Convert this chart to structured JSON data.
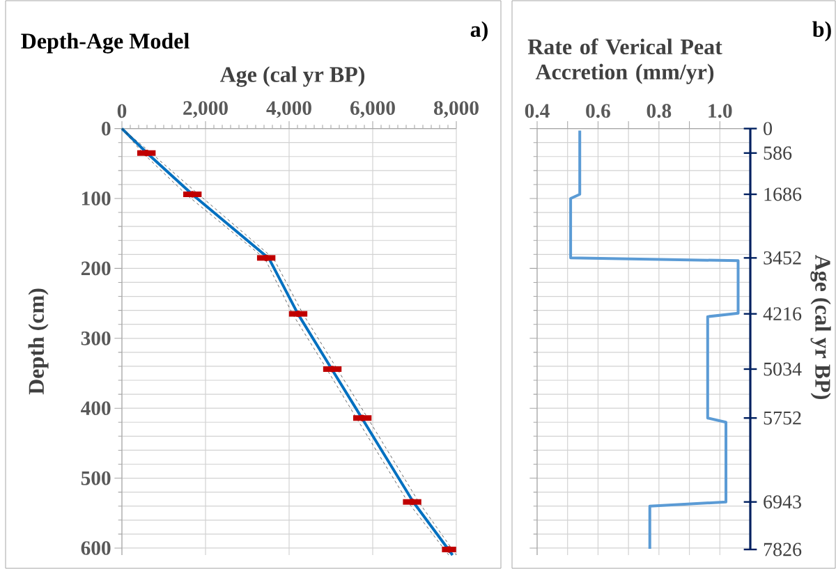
{
  "chart_data": [
    {
      "type": "line",
      "title": "Depth-Age Model",
      "xlabel": "Age (cal yr BP)",
      "ylabel": "Depth (cm)",
      "annotations": [
        "a)"
      ],
      "xlim": [
        0,
        8000
      ],
      "xticks": [
        0,
        {
          "value": 2000,
          "label": "2,000"
        },
        {
          "value": 4000,
          "label": "4,000"
        },
        {
          "value": 6000,
          "label": "6,000"
        },
        {
          "value": 8000,
          "label": "8,000"
        }
      ],
      "ylim": [
        610,
        0
      ],
      "yticks": [
        0,
        100,
        200,
        300,
        400,
        500,
        600
      ],
      "grid": true,
      "series": [
        {
          "color": "#0070c0",
          "x": [
            0,
            600,
            1700,
            3520,
            4210,
            5020,
            5740,
            6970,
            7910
          ],
          "values": [
            0,
            35,
            95,
            186,
            265,
            344,
            414,
            534,
            610
          ]
        },
        {
          "color": "#404040",
          "line_style": "dashed",
          "x": [
            0,
            700,
            1850,
            3630,
            4330,
            5150,
            5880,
            7100,
            8000
          ],
          "values": [
            0,
            35,
            95,
            186,
            265,
            344,
            414,
            534,
            610
          ]
        },
        {
          "color": "#404040",
          "line_style": "dashed",
          "x": [
            0,
            500,
            1550,
            3420,
            4080,
            4900,
            5610,
            6840,
            7820
          ],
          "values": [
            0,
            35,
            95,
            186,
            265,
            344,
            414,
            534,
            610
          ]
        },
        {
          "type": "scatter",
          "color": "#c00000",
          "x": [
            586,
            1686,
            3452,
            4216,
            5034,
            5752,
            6943,
            7826
          ],
          "values": [
            35,
            94,
            185,
            265,
            344,
            414,
            534,
            602
          ],
          "xerrors": [
            220,
            220,
            220,
            220,
            220,
            220,
            220,
            170
          ]
        }
      ]
    },
    {
      "type": "line",
      "xlabel": "Rate of Verical Peat Accretion (mm/yr)",
      "y2label": "Age (cal yr BP)",
      "annotations": [
        "b)",
        "0",
        "586",
        "1686",
        "3452",
        "4216",
        "5034",
        "5752",
        "6943",
        "7826"
      ],
      "tick_labels": "x",
      "xlim": [
        0.4,
        1.1
      ],
      "xticks": [
        {
          "value": 0.4,
          "label": "0.4"
        },
        {
          "value": 0.5,
          "label": null
        },
        {
          "value": 0.6,
          "label": "0.6"
        },
        {
          "value": 0.7,
          "label": null
        },
        {
          "value": 0.8,
          "label": "0.8"
        },
        {
          "value": 0.9,
          "label": null
        },
        {
          "value": 1.0,
          "label": "1.0"
        }
      ],
      "ylim": [
        610,
        0
      ],
      "yticks": [
        0,
        100,
        200,
        300,
        400,
        500,
        600
      ],
      "grid": true,
      "series": [
        {
          "color": "#5b9bd5",
          "x": [
            0.54,
            0.54,
            0.51,
            0.51,
            1.06,
            1.06,
            0.96,
            0.96,
            1.02,
            1.02,
            0.77,
            0.77
          ],
          "values": [
            3,
            94,
            100,
            185,
            189,
            264,
            269,
            414,
            420,
            534,
            540,
            601
          ]
        }
      ]
    }
  ]
}
